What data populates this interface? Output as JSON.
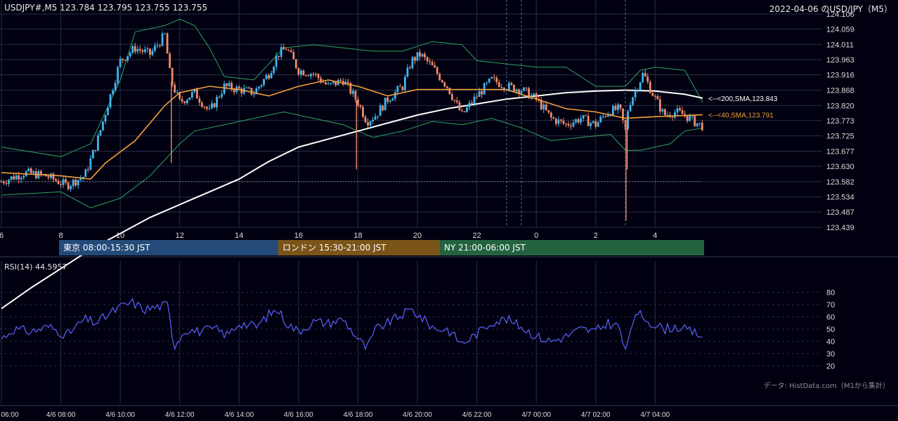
{
  "header": {
    "symbol_line": "USDJPY#,M5 123.784 123.795 123.755 123.755",
    "date_title": "2022-04-06 のUSD/JPY（M5）"
  },
  "colors": {
    "background": "#000010",
    "grid": "#2a2d48",
    "candle_up": "#3fb6f0",
    "candle_down": "#f08a6a",
    "sma40": "#f2a13a",
    "sma200": "#ffffff",
    "bollinger": "#2fa35f",
    "rsi": "#5a62ff",
    "ref_dotted": "#bbbbbb",
    "session_vline": "#4a78b0"
  },
  "sessions": [
    {
      "label": "東京 08:00-15:30 JST",
      "color": "#234a78"
    },
    {
      "label": "ロンドン 15:30-21:00 JST",
      "color": "#7a5418"
    },
    {
      "label": "NY 21:00-06:00 JST",
      "color": "#23633f"
    }
  ],
  "rsi_panel": {
    "label": "RSI(14) 44.5957",
    "source_note": "データ: HistData.com（M1から集計）"
  },
  "chart_data": {
    "type": "candlestick",
    "price_ylim": [
      123.439,
      124.106
    ],
    "price_y_ticks": [
      "124.106",
      "124.059",
      "124.011",
      "123.963",
      "123.916",
      "123.868",
      "123.820",
      "123.773",
      "123.725",
      "123.677",
      "123.630",
      "123.582",
      "123.534",
      "123.487",
      "123.439"
    ],
    "x_range_hours": [
      6,
      29.6
    ],
    "x_hour_ticks": [
      6,
      8,
      10,
      12,
      14,
      16,
      18,
      20,
      22,
      24,
      26,
      28
    ],
    "x_hour_tick_labels": [
      "6",
      "8",
      "10",
      "12",
      "14",
      "16",
      "18",
      "20",
      "22",
      "0",
      "2",
      "4"
    ],
    "bottom_time_labels": [
      "06:00",
      "4/6 08:00",
      "4/6 10:00",
      "4/6 12:00",
      "4/6 14:00",
      "4/6 16:00",
      "4/6 18:00",
      "4/6 20:00",
      "4/6 22:00",
      "4/7 00:00",
      "4/7 02:00",
      "4/7 04:00"
    ],
    "bottom_time_hours": [
      6,
      8,
      10,
      12,
      14,
      16,
      18,
      20,
      22,
      24,
      26,
      28
    ],
    "reference_price": 123.582,
    "session_marker_hours": [
      23,
      23.5,
      27.0
    ],
    "sma_labels": [
      {
        "text": "<--<200,SMA,123.843",
        "price": 123.843,
        "color": "#ffffff"
      },
      {
        "text": "<--<40,SMA,123.791",
        "price": 123.791,
        "color": "#f2a13a"
      }
    ],
    "price_keypoints": [
      [
        6.0,
        123.582
      ],
      [
        6.8,
        123.61
      ],
      [
        7.5,
        123.6
      ],
      [
        8.2,
        123.57
      ],
      [
        8.8,
        123.6
      ],
      [
        9.2,
        123.7
      ],
      [
        9.6,
        123.83
      ],
      [
        10.0,
        123.96
      ],
      [
        10.5,
        124.0
      ],
      [
        11.0,
        123.98
      ],
      [
        11.5,
        124.04
      ],
      [
        11.7,
        123.9
      ],
      [
        12.0,
        123.83
      ],
      [
        12.5,
        123.86
      ],
      [
        13.0,
        123.8
      ],
      [
        13.5,
        123.88
      ],
      [
        14.0,
        123.87
      ],
      [
        14.5,
        123.86
      ],
      [
        15.0,
        123.92
      ],
      [
        15.3,
        123.98
      ],
      [
        15.6,
        124.0
      ],
      [
        16.0,
        123.93
      ],
      [
        16.5,
        123.92
      ],
      [
        17.0,
        123.88
      ],
      [
        17.5,
        123.9
      ],
      [
        18.0,
        123.83
      ],
      [
        18.3,
        123.77
      ],
      [
        18.6,
        123.79
      ],
      [
        19.0,
        123.84
      ],
      [
        19.5,
        123.88
      ],
      [
        19.8,
        123.96
      ],
      [
        20.1,
        123.98
      ],
      [
        20.5,
        123.94
      ],
      [
        21.0,
        123.88
      ],
      [
        21.5,
        123.79
      ],
      [
        22.0,
        123.85
      ],
      [
        22.5,
        123.9
      ],
      [
        23.0,
        123.88
      ],
      [
        23.5,
        123.87
      ],
      [
        24.0,
        123.84
      ],
      [
        24.5,
        123.78
      ],
      [
        25.0,
        123.76
      ],
      [
        25.5,
        123.78
      ],
      [
        26.0,
        123.76
      ],
      [
        26.4,
        123.8
      ],
      [
        26.8,
        123.81
      ],
      [
        27.0,
        123.74
      ],
      [
        27.1,
        123.82
      ],
      [
        27.4,
        123.88
      ],
      [
        27.6,
        123.92
      ],
      [
        27.9,
        123.86
      ],
      [
        28.3,
        123.79
      ],
      [
        28.7,
        123.8
      ],
      [
        29.0,
        123.79
      ],
      [
        29.3,
        123.77
      ],
      [
        29.6,
        123.755
      ]
    ],
    "price_spikes": [
      {
        "hour": 11.72,
        "low": 123.64
      },
      {
        "hour": 17.95,
        "low": 123.62
      },
      {
        "hour": 27.02,
        "low": 123.46
      },
      {
        "hour": 27.06,
        "low": 123.62
      }
    ],
    "sma40_keypoints": [
      [
        6.0,
        123.61
      ],
      [
        8.0,
        123.6
      ],
      [
        9.0,
        123.59
      ],
      [
        9.5,
        123.64
      ],
      [
        10.5,
        123.71
      ],
      [
        11.5,
        123.82
      ],
      [
        12.0,
        123.86
      ],
      [
        13.0,
        123.88
      ],
      [
        14.0,
        123.87
      ],
      [
        15.0,
        123.85
      ],
      [
        16.0,
        123.88
      ],
      [
        17.0,
        123.9
      ],
      [
        18.0,
        123.88
      ],
      [
        19.0,
        123.85
      ],
      [
        20.0,
        123.87
      ],
      [
        21.0,
        123.87
      ],
      [
        22.0,
        123.87
      ],
      [
        23.0,
        123.87
      ],
      [
        24.0,
        123.84
      ],
      [
        25.0,
        123.81
      ],
      [
        26.0,
        123.8
      ],
      [
        27.0,
        123.78
      ],
      [
        28.0,
        123.785
      ],
      [
        29.6,
        123.791
      ]
    ],
    "sma200_keypoints": [
      [
        6.0,
        123.185
      ],
      [
        7.0,
        123.25
      ],
      [
        8.0,
        123.31
      ],
      [
        9.0,
        123.37
      ],
      [
        10.0,
        123.42
      ],
      [
        11.0,
        123.47
      ],
      [
        12.0,
        123.51
      ],
      [
        13.0,
        123.55
      ],
      [
        14.0,
        123.59
      ],
      [
        15.0,
        123.645
      ],
      [
        16.0,
        123.69
      ],
      [
        17.0,
        123.715
      ],
      [
        18.0,
        123.74
      ],
      [
        19.0,
        123.765
      ],
      [
        20.0,
        123.79
      ],
      [
        21.0,
        123.81
      ],
      [
        22.0,
        123.825
      ],
      [
        23.0,
        123.84
      ],
      [
        24.0,
        123.85
      ],
      [
        25.0,
        123.86
      ],
      [
        26.0,
        123.865
      ],
      [
        27.0,
        123.868
      ],
      [
        28.0,
        123.865
      ],
      [
        29.0,
        123.855
      ],
      [
        29.6,
        123.843
      ]
    ],
    "bollinger_upper_keypoints": [
      [
        6.0,
        123.69
      ],
      [
        8.0,
        123.66
      ],
      [
        9.0,
        123.7
      ],
      [
        10.0,
        123.9
      ],
      [
        10.5,
        124.05
      ],
      [
        11.5,
        124.07
      ],
      [
        12.0,
        124.09
      ],
      [
        12.5,
        124.07
      ],
      [
        13.0,
        124.0
      ],
      [
        13.5,
        123.91
      ],
      [
        14.5,
        123.9
      ],
      [
        15.5,
        124.0
      ],
      [
        16.5,
        124.01
      ],
      [
        17.5,
        124.0
      ],
      [
        18.5,
        123.99
      ],
      [
        19.5,
        123.99
      ],
      [
        20.5,
        124.02
      ],
      [
        21.5,
        124.01
      ],
      [
        22.0,
        123.96
      ],
      [
        23.0,
        123.95
      ],
      [
        24.0,
        123.94
      ],
      [
        25.0,
        123.94
      ],
      [
        26.0,
        123.88
      ],
      [
        27.0,
        123.88
      ],
      [
        27.5,
        123.93
      ],
      [
        28.0,
        123.94
      ],
      [
        29.0,
        123.93
      ],
      [
        29.6,
        123.83
      ]
    ],
    "bollinger_lower_keypoints": [
      [
        6.0,
        123.54
      ],
      [
        8.0,
        123.55
      ],
      [
        9.0,
        123.5
      ],
      [
        10.0,
        123.53
      ],
      [
        11.0,
        123.6
      ],
      [
        11.5,
        123.65
      ],
      [
        12.0,
        123.7
      ],
      [
        12.5,
        123.74
      ],
      [
        13.5,
        123.76
      ],
      [
        14.5,
        123.78
      ],
      [
        15.5,
        123.8
      ],
      [
        16.5,
        123.78
      ],
      [
        17.5,
        123.76
      ],
      [
        18.5,
        123.72
      ],
      [
        19.5,
        123.74
      ],
      [
        20.5,
        123.77
      ],
      [
        21.5,
        123.76
      ],
      [
        22.5,
        123.78
      ],
      [
        23.5,
        123.75
      ],
      [
        24.5,
        123.71
      ],
      [
        25.5,
        123.72
      ],
      [
        26.5,
        123.73
      ],
      [
        27.0,
        123.68
      ],
      [
        27.5,
        123.68
      ],
      [
        28.5,
        123.7
      ],
      [
        29.0,
        123.74
      ],
      [
        29.6,
        123.75
      ]
    ],
    "rsi_ylim": [
      15,
      85
    ],
    "rsi_y_ticks": [
      80,
      70,
      60,
      50,
      40,
      30,
      20
    ],
    "rsi_keypoints": [
      [
        6.0,
        42
      ],
      [
        6.4,
        50
      ],
      [
        7.0,
        48
      ],
      [
        7.6,
        52
      ],
      [
        8.2,
        45
      ],
      [
        8.8,
        58
      ],
      [
        9.2,
        55
      ],
      [
        9.6,
        62
      ],
      [
        10.0,
        68
      ],
      [
        10.4,
        72
      ],
      [
        10.8,
        66
      ],
      [
        11.2,
        68
      ],
      [
        11.6,
        70
      ],
      [
        11.8,
        36
      ],
      [
        12.2,
        50
      ],
      [
        12.6,
        48
      ],
      [
        13.2,
        50
      ],
      [
        13.6,
        45
      ],
      [
        14.0,
        55
      ],
      [
        14.6,
        52
      ],
      [
        15.0,
        62
      ],
      [
        15.3,
        66
      ],
      [
        15.6,
        55
      ],
      [
        16.0,
        48
      ],
      [
        16.5,
        56
      ],
      [
        17.0,
        55
      ],
      [
        17.5,
        58
      ],
      [
        18.0,
        42
      ],
      [
        18.3,
        34
      ],
      [
        18.6,
        50
      ],
      [
        19.0,
        55
      ],
      [
        19.5,
        62
      ],
      [
        19.8,
        66
      ],
      [
        20.2,
        58
      ],
      [
        20.6,
        50
      ],
      [
        21.0,
        50
      ],
      [
        21.5,
        38
      ],
      [
        22.0,
        46
      ],
      [
        22.5,
        56
      ],
      [
        23.0,
        58
      ],
      [
        23.5,
        52
      ],
      [
        24.0,
        44
      ],
      [
        24.5,
        40
      ],
      [
        25.0,
        44
      ],
      [
        25.5,
        50
      ],
      [
        26.0,
        48
      ],
      [
        26.4,
        55
      ],
      [
        26.8,
        52
      ],
      [
        27.0,
        30
      ],
      [
        27.2,
        55
      ],
      [
        27.5,
        62
      ],
      [
        27.8,
        56
      ],
      [
        28.3,
        50
      ],
      [
        28.7,
        52
      ],
      [
        29.2,
        48
      ],
      [
        29.6,
        44.6
      ]
    ]
  }
}
